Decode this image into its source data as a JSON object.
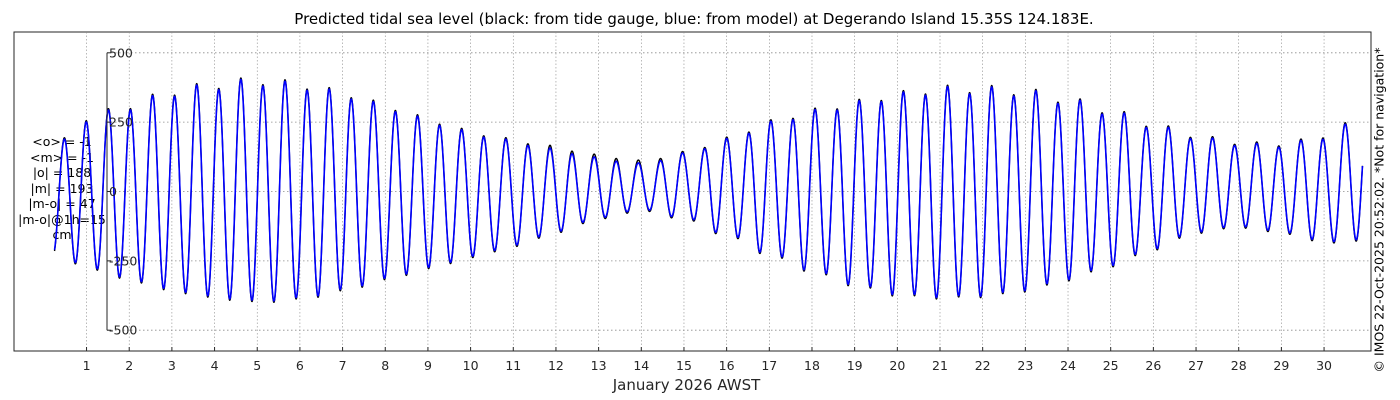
{
  "stats": {
    "mean_obs": "<o> = -1",
    "mean_model": "<m> = -1",
    "amp_obs": "|o| = 188",
    "amp_model": "|m| = 193",
    "abs_diff": "|m-o| = 47",
    "abs_diff_1h": "|m-o|@1h=15",
    "units": "cm"
  },
  "copyright": "© IMOS 22-Oct-2025 20:52:02. *Not for navigation*",
  "colors": {
    "observed": "#000000",
    "model": "#0000ff",
    "grid": "#8c8c8c",
    "axis": "#262626"
  },
  "chart_data": {
    "type": "line",
    "title": "Predicted tidal sea level (black: from tide gauge, blue: from model) at Degerando Island 15.35S 124.183E.",
    "xlabel": "January 2026 AWST",
    "ylabel": "",
    "x_ticks": [
      1,
      2,
      3,
      4,
      5,
      6,
      7,
      8,
      9,
      10,
      11,
      12,
      13,
      14,
      15,
      16,
      17,
      18,
      19,
      20,
      21,
      22,
      23,
      24,
      25,
      26,
      27,
      28,
      29,
      30
    ],
    "x_tick_labels": [
      "1",
      "2",
      "3",
      "4",
      "5",
      "6",
      "7",
      "8",
      "9",
      "10",
      "11",
      "12",
      "13",
      "14",
      "15",
      "16",
      "17",
      "18",
      "19",
      "20",
      "21",
      "22",
      "23",
      "24",
      "25",
      "26",
      "27",
      "28",
      "29",
      "30"
    ],
    "y_ticks": [
      -500,
      -250,
      0,
      250,
      500
    ],
    "y_tick_labels": [
      "-500",
      "-250",
      "0",
      "250",
      "500"
    ],
    "xlim": [
      -0.7,
      31.1
    ],
    "ylim": [
      -575,
      575
    ],
    "grid": true,
    "series": [
      {
        "color": "#000000",
        "description_x": "day of month",
        "x": [
          0.25,
          1,
          2,
          3,
          4,
          5,
          6,
          7,
          8,
          9,
          10,
          11,
          12,
          13,
          14,
          15,
          16,
          17,
          18,
          19,
          20,
          21,
          22,
          23,
          24,
          25,
          26,
          27,
          28,
          29,
          30,
          30.9
        ],
        "high_water": [
          165,
          265,
          310,
          360,
          385,
          400,
          385,
          355,
          310,
          260,
          215,
          185,
          160,
          130,
          110,
          140,
          190,
          250,
          290,
          320,
          350,
          370,
          370,
          360,
          330,
          290,
          240,
          200,
          175,
          170,
          200,
          270
        ],
        "low_water": [
          -230,
          -275,
          -320,
          -360,
          -385,
          -400,
          -390,
          -360,
          -320,
          -280,
          -240,
          -200,
          -150,
          -100,
          -70,
          -100,
          -160,
          -230,
          -290,
          -340,
          -375,
          -385,
          -380,
          -360,
          -320,
          -270,
          -210,
          -150,
          -130,
          -150,
          -185,
          -180
        ]
      },
      {
        "color": "#0000ff",
        "description_x": "day of month",
        "x": [
          0.25,
          1,
          2,
          3,
          4,
          5,
          6,
          7,
          8,
          9,
          10,
          11,
          12,
          13,
          14,
          15,
          16,
          17,
          18,
          19,
          20,
          21,
          22,
          23,
          24,
          25,
          26,
          27,
          28,
          29,
          30,
          30.9
        ],
        "high_water": [
          160,
          260,
          305,
          355,
          380,
          395,
          380,
          350,
          305,
          255,
          210,
          180,
          150,
          120,
          100,
          135,
          185,
          245,
          285,
          315,
          345,
          365,
          365,
          355,
          325,
          285,
          235,
          195,
          170,
          165,
          195,
          265
        ],
        "low_water": [
          -225,
          -270,
          -315,
          -355,
          -380,
          -395,
          -385,
          -355,
          -315,
          -275,
          -235,
          -195,
          -145,
          -95,
          -65,
          -95,
          -155,
          -225,
          -285,
          -335,
          -370,
          -380,
          -375,
          -355,
          -315,
          -265,
          -205,
          -145,
          -125,
          -145,
          -180,
          -175
        ]
      }
    ]
  }
}
